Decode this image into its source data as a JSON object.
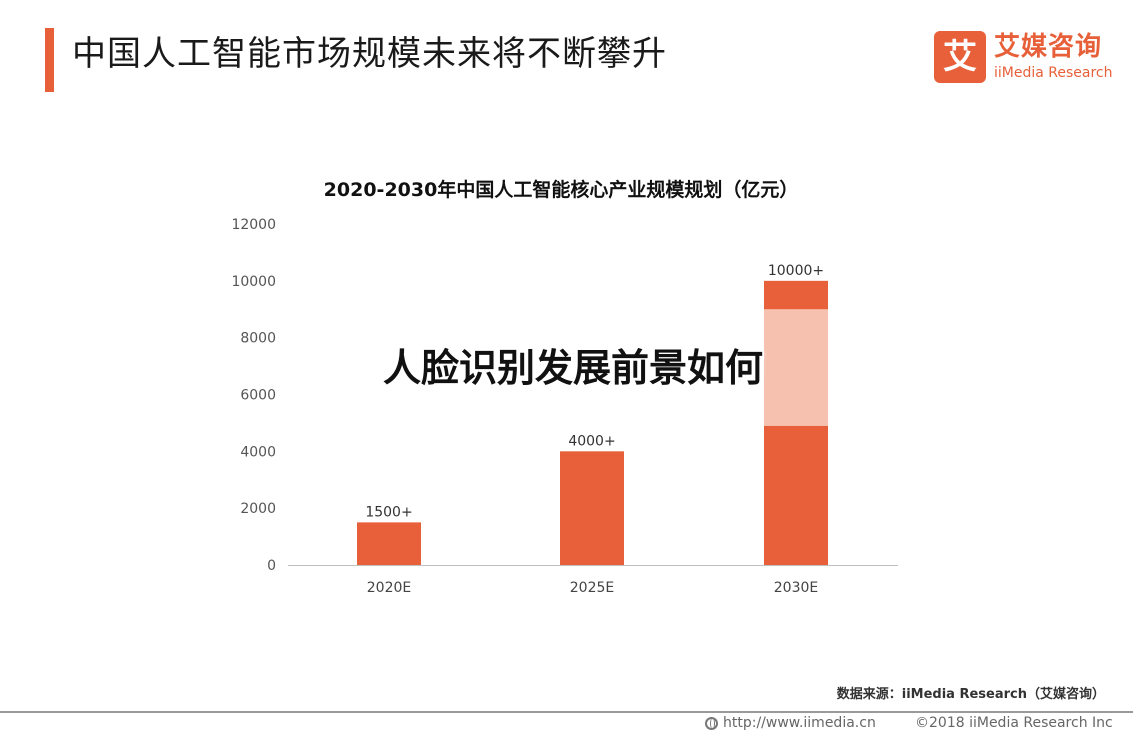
{
  "header": {
    "title": "中国人工智能市场规模未来将不断攀升"
  },
  "logo": {
    "mark": "艾",
    "name_cn": "艾媒咨询",
    "name_en": "iiMedia Research"
  },
  "overlay_text": "人脸识别发展前景如何",
  "source_note": "数据来源：iiMedia Research（艾媒咨询）",
  "footer": {
    "url": "http://www.iimedia.cn",
    "copyright": "©2018  iiMedia Research  Inc"
  },
  "colors": {
    "accent": "#e8603a",
    "segment_light": "#f6c1ae"
  },
  "chart_data": {
    "type": "bar",
    "title": "2020-2030年中国人工智能核心产业规模规划（亿元）",
    "categories": [
      "2020E",
      "2025E",
      "2030E"
    ],
    "series": [
      {
        "values": [
          1500,
          4000,
          4900
        ]
      },
      {
        "values": [
          0,
          0,
          4100
        ]
      },
      {
        "values": [
          0,
          0,
          1000
        ]
      }
    ],
    "data_labels": [
      "1500+",
      "4000+",
      "10000+"
    ],
    "totals": [
      1500,
      4000,
      10000
    ],
    "ylim": [
      0,
      12000
    ],
    "yticks": [
      0,
      2000,
      4000,
      6000,
      8000,
      10000,
      12000
    ],
    "grid": false,
    "legend": "none"
  }
}
